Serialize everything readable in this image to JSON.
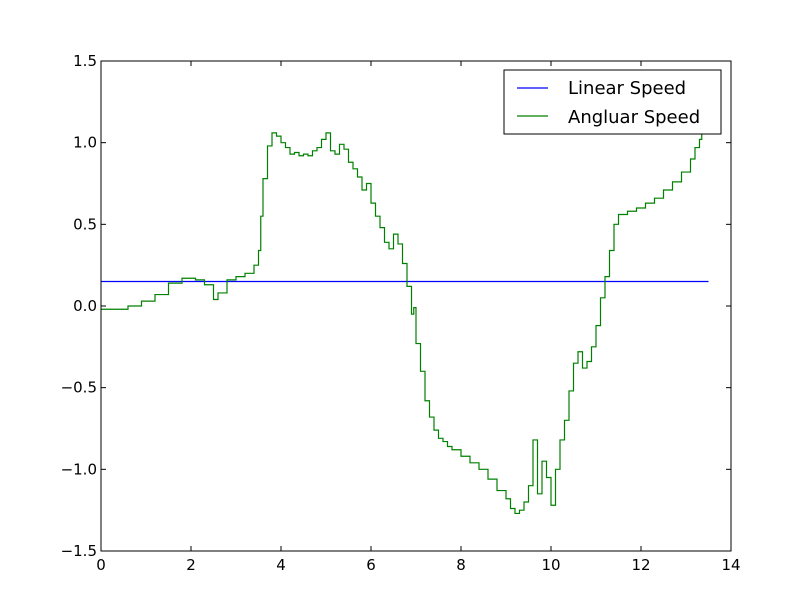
{
  "chart_data": {
    "type": "line",
    "title": "",
    "xlabel": "",
    "ylabel": "",
    "xlim": [
      0,
      14
    ],
    "ylim": [
      -1.5,
      1.5
    ],
    "xticks": [
      0,
      2,
      4,
      6,
      8,
      10,
      12,
      14
    ],
    "yticks": [
      -1.5,
      -1.0,
      -0.5,
      0.0,
      0.5,
      1.0,
      1.5
    ],
    "ytick_labels": [
      "−1.5",
      "−1.0",
      "−0.5",
      "0.0",
      "0.5",
      "1.0",
      "1.5"
    ],
    "grid": false,
    "legend_position": "top-right",
    "step": true,
    "series": [
      {
        "name": "Linear Speed",
        "color": "#0000ff",
        "x": [
          0,
          13.5
        ],
        "y": [
          0.15,
          0.15
        ]
      },
      {
        "name": "Angluar Speed",
        "color": "#008000",
        "x": [
          0,
          0.3,
          0.6,
          0.9,
          1.2,
          1.5,
          1.8,
          2.1,
          2.3,
          2.5,
          2.6,
          2.8,
          3.0,
          3.2,
          3.4,
          3.5,
          3.55,
          3.6,
          3.7,
          3.8,
          3.9,
          4.0,
          4.1,
          4.2,
          4.3,
          4.4,
          4.5,
          4.6,
          4.7,
          4.8,
          4.9,
          5.0,
          5.1,
          5.2,
          5.3,
          5.4,
          5.5,
          5.6,
          5.7,
          5.8,
          5.9,
          6.0,
          6.1,
          6.2,
          6.3,
          6.4,
          6.5,
          6.6,
          6.7,
          6.8,
          6.9,
          6.95,
          7.0,
          7.1,
          7.2,
          7.3,
          7.4,
          7.5,
          7.6,
          7.7,
          7.8,
          8.0,
          8.2,
          8.4,
          8.6,
          8.8,
          9.0,
          9.1,
          9.2,
          9.3,
          9.4,
          9.5,
          9.6,
          9.7,
          9.8,
          9.9,
          10.0,
          10.1,
          10.2,
          10.3,
          10.4,
          10.5,
          10.6,
          10.7,
          10.8,
          10.9,
          11.0,
          11.1,
          11.2,
          11.3,
          11.4,
          11.5,
          11.7,
          11.9,
          12.1,
          12.3,
          12.5,
          12.7,
          12.9,
          13.1,
          13.2,
          13.3,
          13.35
        ],
        "y": [
          -0.02,
          -0.02,
          0.0,
          0.03,
          0.07,
          0.14,
          0.17,
          0.16,
          0.13,
          0.04,
          0.08,
          0.16,
          0.18,
          0.2,
          0.25,
          0.34,
          0.55,
          0.78,
          0.98,
          1.06,
          1.04,
          1.0,
          0.97,
          0.93,
          0.94,
          0.92,
          0.93,
          0.92,
          0.95,
          0.97,
          1.02,
          1.06,
          0.95,
          0.93,
          0.99,
          0.96,
          0.88,
          0.84,
          0.79,
          0.71,
          0.75,
          0.63,
          0.55,
          0.48,
          0.39,
          0.35,
          0.44,
          0.38,
          0.26,
          0.12,
          -0.05,
          -0.01,
          -0.23,
          -0.4,
          -0.58,
          -0.68,
          -0.76,
          -0.81,
          -0.83,
          -0.86,
          -0.88,
          -0.92,
          -0.96,
          -1.0,
          -1.06,
          -1.13,
          -1.18,
          -1.24,
          -1.27,
          -1.25,
          -1.2,
          -1.1,
          -0.82,
          -1.15,
          -0.95,
          -1.05,
          -1.22,
          -1.0,
          -0.82,
          -0.7,
          -0.52,
          -0.35,
          -0.28,
          -0.38,
          -0.34,
          -0.25,
          -0.12,
          0.05,
          0.18,
          0.34,
          0.5,
          0.56,
          0.58,
          0.6,
          0.63,
          0.66,
          0.71,
          0.76,
          0.82,
          0.9,
          0.97,
          1.02,
          1.07
        ]
      }
    ]
  }
}
